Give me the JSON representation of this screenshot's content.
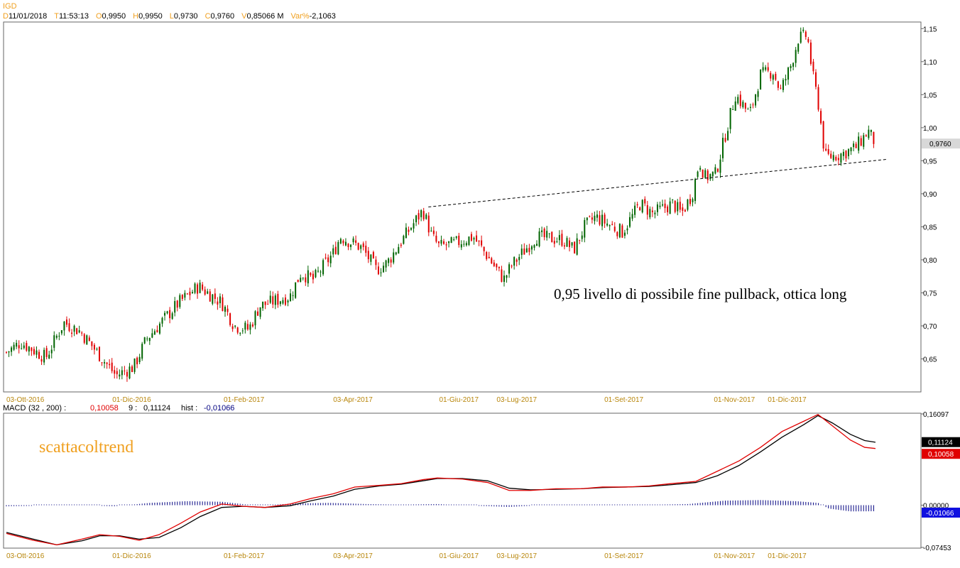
{
  "header": {
    "symbol": "IGD",
    "ohlc": [
      {
        "k": "D",
        "v": "11/01/2018"
      },
      {
        "k": "T",
        "v": "11:53:13"
      },
      {
        "k": "O",
        "v": "0,9950"
      },
      {
        "k": "H",
        "v": "0,9950"
      },
      {
        "k": "L",
        "v": "0,9730"
      },
      {
        "k": "C",
        "v": "0,9760"
      },
      {
        "k": "V",
        "v": "0,85066 M"
      },
      {
        "k": "Var%",
        "v": "-2,1063"
      }
    ],
    "macd": {
      "name": "MACD",
      "params": "(32 , 200) :",
      "macd_value": "0,10058",
      "signal_label": "9 :",
      "signal_value": "0,11124",
      "hist_label": "hist :",
      "hist_value": "-0,01066"
    }
  },
  "colors": {
    "bull": "#006400",
    "bear": "#e00000",
    "macd_line": "#e00000",
    "signal_line": "#000000",
    "hist": "#000080",
    "axis_text": "#b8860b",
    "brand": "#f0a020"
  },
  "annotations": {
    "main_text": "0,95 livello di possibile fine pullback, ottica long",
    "brand": "scattacoltrend"
  },
  "chart_data": [
    {
      "type": "candlestick",
      "ylim": [
        0.6,
        1.16
      ],
      "yticks": [
        "1,15",
        "1,10",
        "1,05",
        "1,00",
        "0,95",
        "0,90",
        "0,85",
        "0,80",
        "0,75",
        "0,70",
        "0,65"
      ],
      "ytick_values": [
        1.15,
        1.1,
        1.05,
        1.0,
        0.95,
        0.9,
        0.85,
        0.8,
        0.75,
        0.7,
        0.65
      ],
      "current_price_label": "0,9760",
      "current_price": 0.976,
      "xticks": [
        {
          "label": "03-Ott-2016",
          "day": 0
        },
        {
          "label": "01-Dic-2016",
          "day": 59
        },
        {
          "label": "01-Feb-2017",
          "day": 121
        },
        {
          "label": "03-Apr-2017",
          "day": 182
        },
        {
          "label": "01-Giu-2017",
          "day": 241
        },
        {
          "label": "03-Lug-2017",
          "day": 273
        },
        {
          "label": "01-Set-2017",
          "day": 333
        },
        {
          "label": "01-Nov-2017",
          "day": 394
        },
        {
          "label": "01-Dic-2017",
          "day": 424
        }
      ],
      "x_range_days": [
        0,
        486
      ],
      "price_path": [
        [
          0,
          0.66
        ],
        [
          8,
          0.675
        ],
        [
          22,
          0.652
        ],
        [
          32,
          0.705
        ],
        [
          41,
          0.692
        ],
        [
          55,
          0.645
        ],
        [
          61,
          0.625
        ],
        [
          71,
          0.638
        ],
        [
          78,
          0.68
        ],
        [
          96,
          0.735
        ],
        [
          107,
          0.76
        ],
        [
          120,
          0.735
        ],
        [
          127,
          0.7
        ],
        [
          135,
          0.695
        ],
        [
          141,
          0.73
        ],
        [
          152,
          0.74
        ],
        [
          158,
          0.745
        ],
        [
          164,
          0.78
        ],
        [
          171,
          0.77
        ],
        [
          182,
          0.81
        ],
        [
          186,
          0.835
        ],
        [
          198,
          0.818
        ],
        [
          206,
          0.785
        ],
        [
          212,
          0.795
        ],
        [
          218,
          0.82
        ],
        [
          228,
          0.86
        ],
        [
          232,
          0.875
        ],
        [
          237,
          0.835
        ],
        [
          241,
          0.82
        ],
        [
          250,
          0.825
        ],
        [
          260,
          0.835
        ],
        [
          268,
          0.805
        ],
        [
          277,
          0.77
        ],
        [
          281,
          0.79
        ],
        [
          295,
          0.835
        ],
        [
          310,
          0.83
        ],
        [
          316,
          0.815
        ],
        [
          322,
          0.85
        ],
        [
          328,
          0.865
        ],
        [
          343,
          0.842
        ],
        [
          353,
          0.885
        ],
        [
          360,
          0.87
        ],
        [
          371,
          0.885
        ],
        [
          376,
          0.87
        ],
        [
          382,
          0.9
        ],
        [
          386,
          0.95
        ],
        [
          389,
          0.925
        ],
        [
          395,
          0.93
        ],
        [
          400,
          0.985
        ],
        [
          406,
          1.05
        ],
        [
          414,
          1.02
        ],
        [
          420,
          1.08
        ],
        [
          427,
          1.085
        ],
        [
          431,
          1.055
        ],
        [
          437,
          1.095
        ],
        [
          441,
          1.135
        ],
        [
          446,
          1.14
        ],
        [
          449,
          1.08
        ],
        [
          452,
          1.04
        ],
        [
          456,
          0.955
        ],
        [
          465,
          0.96
        ],
        [
          473,
          0.97
        ],
        [
          480,
          0.995
        ],
        [
          484,
          0.976
        ]
      ],
      "support_line": {
        "from": {
          "day": 235,
          "price": 0.88
        },
        "to": {
          "day": 490,
          "price": 0.952
        }
      }
    },
    {
      "type": "line",
      "title": "MACD",
      "ylim": [
        -0.07453,
        0.16097
      ],
      "yticks": [
        "0,16097",
        "0,00000",
        "-0,07453"
      ],
      "ytick_values": [
        0.16097,
        0.0,
        -0.07453
      ],
      "series": [
        {
          "name": "MACD",
          "role": "macd",
          "points": [
            [
              0,
              -0.05
            ],
            [
              15,
              -0.062
            ],
            [
              28,
              -0.07
            ],
            [
              42,
              -0.06
            ],
            [
              52,
              -0.052
            ],
            [
              63,
              -0.055
            ],
            [
              74,
              -0.062
            ],
            [
              85,
              -0.052
            ],
            [
              97,
              -0.032
            ],
            [
              108,
              -0.012
            ],
            [
              120,
              0.002
            ],
            [
              132,
              -0.002
            ],
            [
              144,
              -0.004
            ],
            [
              158,
              0.002
            ],
            [
              170,
              0.012
            ],
            [
              182,
              0.02
            ],
            [
              194,
              0.032
            ],
            [
              208,
              0.035
            ],
            [
              220,
              0.038
            ],
            [
              232,
              0.045
            ],
            [
              240,
              0.048
            ],
            [
              254,
              0.046
            ],
            [
              268,
              0.04
            ],
            [
              280,
              0.026
            ],
            [
              292,
              0.026
            ],
            [
              306,
              0.029
            ],
            [
              320,
              0.029
            ],
            [
              332,
              0.032
            ],
            [
              345,
              0.032
            ],
            [
              358,
              0.034
            ],
            [
              370,
              0.038
            ],
            [
              384,
              0.042
            ],
            [
              396,
              0.06
            ],
            [
              408,
              0.078
            ],
            [
              420,
              0.102
            ],
            [
              432,
              0.13
            ],
            [
              444,
              0.148
            ],
            [
              452,
              0.16
            ],
            [
              460,
              0.14
            ],
            [
              470,
              0.115
            ],
            [
              478,
              0.102
            ],
            [
              484,
              0.1
            ]
          ]
        },
        {
          "name": "Signal",
          "role": "signal",
          "points": [
            [
              0,
              -0.048
            ],
            [
              15,
              -0.06
            ],
            [
              28,
              -0.07
            ],
            [
              42,
              -0.063
            ],
            [
              52,
              -0.054
            ],
            [
              63,
              -0.054
            ],
            [
              74,
              -0.06
            ],
            [
              85,
              -0.057
            ],
            [
              97,
              -0.04
            ],
            [
              108,
              -0.02
            ],
            [
              120,
              -0.004
            ],
            [
              132,
              -0.002
            ],
            [
              144,
              -0.004
            ],
            [
              158,
              -0.001
            ],
            [
              170,
              0.008
            ],
            [
              182,
              0.016
            ],
            [
              194,
              0.028
            ],
            [
              208,
              0.034
            ],
            [
              220,
              0.037
            ],
            [
              232,
              0.043
            ],
            [
              240,
              0.047
            ],
            [
              254,
              0.047
            ],
            [
              268,
              0.043
            ],
            [
              280,
              0.03
            ],
            [
              292,
              0.027
            ],
            [
              306,
              0.028
            ],
            [
              320,
              0.029
            ],
            [
              332,
              0.031
            ],
            [
              345,
              0.032
            ],
            [
              358,
              0.033
            ],
            [
              370,
              0.036
            ],
            [
              384,
              0.04
            ],
            [
              396,
              0.052
            ],
            [
              408,
              0.07
            ],
            [
              420,
              0.094
            ],
            [
              432,
              0.12
            ],
            [
              444,
              0.142
            ],
            [
              452,
              0.158
            ],
            [
              460,
              0.145
            ],
            [
              470,
              0.125
            ],
            [
              478,
              0.114
            ],
            [
              484,
              0.111
            ]
          ]
        }
      ],
      "histogram": {
        "name": "hist",
        "points": [
          [
            0,
            -0.002
          ],
          [
            40,
            0.0
          ],
          [
            60,
            -0.002
          ],
          [
            80,
            0.004
          ],
          [
            100,
            0.007
          ],
          [
            120,
            0.006
          ],
          [
            140,
            -0.001
          ],
          [
            160,
            0.003
          ],
          [
            180,
            0.004
          ],
          [
            200,
            0.002
          ],
          [
            220,
            0.001
          ],
          [
            240,
            0.002
          ],
          [
            260,
            -0.001
          ],
          [
            280,
            -0.003
          ],
          [
            300,
            0.0
          ],
          [
            320,
            0.0
          ],
          [
            340,
            0.001
          ],
          [
            360,
            0.001
          ],
          [
            380,
            0.002
          ],
          [
            400,
            0.008
          ],
          [
            420,
            0.009
          ],
          [
            440,
            0.007
          ],
          [
            452,
            0.004
          ],
          [
            458,
            -0.006
          ],
          [
            470,
            -0.011
          ],
          [
            484,
            -0.0107
          ]
        ]
      },
      "macd_label": "0,10058",
      "macd_current": 0.10058,
      "signal_label": "0,11124",
      "signal_current": 0.11124,
      "hist_label": "-0,01066",
      "hist_current": -0.01066,
      "xticks": [
        {
          "label": "03-Ott-2016",
          "day": 0
        },
        {
          "label": "01-Dic-2016",
          "day": 59
        },
        {
          "label": "01-Feb-2017",
          "day": 121
        },
        {
          "label": "03-Apr-2017",
          "day": 182
        },
        {
          "label": "01-Giu-2017",
          "day": 241
        },
        {
          "label": "03-Lug-2017",
          "day": 273
        },
        {
          "label": "01-Set-2017",
          "day": 333
        },
        {
          "label": "01-Nov-2017",
          "day": 394
        },
        {
          "label": "01-Dic-2017",
          "day": 424
        }
      ]
    }
  ]
}
